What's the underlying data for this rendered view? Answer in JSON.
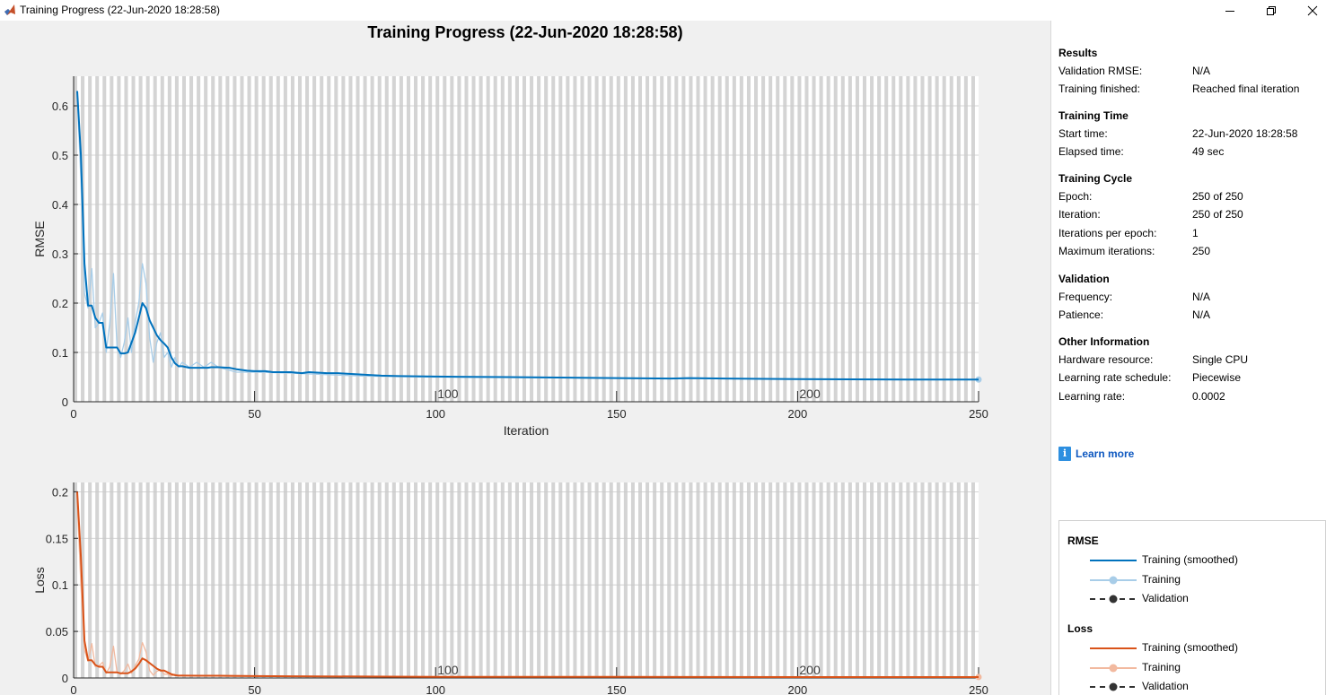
{
  "window": {
    "title": "Training Progress (22-Jun-2020 18:28:58)",
    "controls": [
      "minimize-icon",
      "restore-icon",
      "close-icon"
    ]
  },
  "plot_title": "Training Progress (22-Jun-2020 18:28:58)",
  "colors": {
    "rmse_smoothed": "#0072bd",
    "rmse_raw": "#a8cde8",
    "loss_smoothed": "#d95319",
    "loss_raw": "#f2b99f",
    "validation": "#333333",
    "stripe": "#d4d4d4"
  },
  "results": {
    "sections": [
      {
        "title": "Results",
        "rows": [
          {
            "key": "Validation RMSE:",
            "value": "N/A"
          },
          {
            "key": "Training finished:",
            "value": "Reached final iteration"
          }
        ]
      },
      {
        "title": "Training Time",
        "rows": [
          {
            "key": "Start time:",
            "value": "22-Jun-2020 18:28:58"
          },
          {
            "key": "Elapsed time:",
            "value": "49 sec"
          }
        ]
      },
      {
        "title": "Training Cycle",
        "rows": [
          {
            "key": "Epoch:",
            "value": "250 of 250"
          },
          {
            "key": "Iteration:",
            "value": "250 of 250"
          },
          {
            "key": "Iterations per epoch:",
            "value": "1"
          },
          {
            "key": "Maximum iterations:",
            "value": "250"
          }
        ]
      },
      {
        "title": "Validation",
        "rows": [
          {
            "key": "Frequency:",
            "value": "N/A"
          },
          {
            "key": "Patience:",
            "value": "N/A"
          }
        ]
      },
      {
        "title": "Other Information",
        "rows": [
          {
            "key": "Hardware resource:",
            "value": "Single CPU"
          },
          {
            "key": "Learning rate schedule:",
            "value": "Piecewise"
          },
          {
            "key": "Learning rate:",
            "value": "0.0002"
          }
        ]
      }
    ],
    "learn_more": "Learn more"
  },
  "legend": {
    "groups": [
      {
        "title": "RMSE",
        "items": [
          {
            "label": "Training (smoothed)",
            "style": "solid",
            "color": "#0072bd",
            "marker": false
          },
          {
            "label": "Training",
            "style": "solid",
            "color": "#a8cde8",
            "marker": true
          },
          {
            "label": "Validation",
            "style": "dashed",
            "color": "#333333",
            "marker": true
          }
        ]
      },
      {
        "title": "Loss",
        "items": [
          {
            "label": "Training (smoothed)",
            "style": "solid",
            "color": "#d95319",
            "marker": false
          },
          {
            "label": "Training",
            "style": "solid",
            "color": "#f2b99f",
            "marker": true
          },
          {
            "label": "Validation",
            "style": "dashed",
            "color": "#333333",
            "marker": true
          }
        ]
      }
    ]
  },
  "chart_data": [
    {
      "type": "line",
      "ylabel": "RMSE",
      "xlabel": "Iteration",
      "xlim": [
        0,
        250
      ],
      "ylim": [
        0,
        0.66
      ],
      "xticks": [
        "0",
        "50",
        "100",
        "150",
        "200",
        "250"
      ],
      "yticks": [
        "0",
        "0.1",
        "0.2",
        "0.3",
        "0.4",
        "0.5",
        "0.6"
      ],
      "epoch_labels": [
        "100",
        "200"
      ],
      "grid": true,
      "series": [
        {
          "name": "Training (smoothed)",
          "x": [
            1,
            2,
            3,
            4,
            5,
            6,
            7,
            8,
            9,
            10,
            11,
            12,
            13,
            14,
            15,
            16,
            17,
            18,
            19,
            20,
            21,
            22,
            23,
            24,
            25,
            26,
            27,
            28,
            29,
            30,
            32,
            35,
            37,
            38,
            40,
            43,
            45,
            48,
            50,
            53,
            55,
            58,
            60,
            63,
            65,
            70,
            73,
            75,
            80,
            85,
            90,
            100,
            120,
            150,
            165,
            170,
            180,
            200,
            230,
            250
          ],
          "values": [
            0.63,
            0.5,
            0.28,
            0.195,
            0.195,
            0.17,
            0.16,
            0.16,
            0.11,
            0.11,
            0.11,
            0.11,
            0.098,
            0.098,
            0.1,
            0.12,
            0.14,
            0.17,
            0.2,
            0.19,
            0.165,
            0.15,
            0.135,
            0.125,
            0.118,
            0.11,
            0.09,
            0.078,
            0.072,
            0.072,
            0.069,
            0.069,
            0.069,
            0.07,
            0.07,
            0.069,
            0.066,
            0.063,
            0.062,
            0.062,
            0.06,
            0.06,
            0.06,
            0.058,
            0.06,
            0.058,
            0.058,
            0.057,
            0.055,
            0.053,
            0.052,
            0.051,
            0.05,
            0.048,
            0.047,
            0.048,
            0.047,
            0.046,
            0.045,
            0.045
          ]
        },
        {
          "name": "Training",
          "x": [
            1,
            2,
            3,
            4,
            5,
            6,
            7,
            8,
            9,
            10,
            11,
            12,
            13,
            14,
            15,
            16,
            17,
            18,
            19,
            20,
            21,
            22,
            23,
            24,
            25,
            26,
            27,
            28,
            29,
            30,
            32,
            34,
            36,
            38,
            40,
            45,
            50,
            60,
            80,
            100,
            150,
            200,
            250
          ],
          "values": [
            0.62,
            0.45,
            0.22,
            0.19,
            0.27,
            0.15,
            0.16,
            0.18,
            0.1,
            0.16,
            0.26,
            0.11,
            0.09,
            0.12,
            0.17,
            0.1,
            0.16,
            0.2,
            0.28,
            0.24,
            0.13,
            0.08,
            0.12,
            0.14,
            0.09,
            0.1,
            0.07,
            0.09,
            0.07,
            0.08,
            0.07,
            0.08,
            0.07,
            0.08,
            0.07,
            0.06,
            0.06,
            0.058,
            0.052,
            0.05,
            0.048,
            0.046,
            0.045
          ]
        }
      ]
    },
    {
      "type": "line",
      "ylabel": "Loss",
      "xlabel": "",
      "xlim": [
        0,
        250
      ],
      "ylim": [
        0,
        0.21
      ],
      "xticks": [
        "0",
        "50",
        "100",
        "150",
        "200",
        "250"
      ],
      "yticks": [
        "0",
        "0.05",
        "0.1",
        "0.15",
        "0.2"
      ],
      "epoch_labels": [
        "100",
        "200"
      ],
      "grid": true,
      "series": [
        {
          "name": "Training (smoothed)",
          "x": [
            1,
            2,
            3,
            4,
            5,
            6,
            7,
            8,
            9,
            10,
            11,
            12,
            13,
            14,
            15,
            16,
            17,
            18,
            19,
            20,
            21,
            22,
            23,
            24,
            25,
            26,
            27,
            28,
            29,
            30,
            35,
            40,
            50,
            60,
            80,
            100,
            150,
            200,
            250
          ],
          "values": [
            0.2,
            0.13,
            0.04,
            0.019,
            0.019,
            0.014,
            0.012,
            0.012,
            0.006,
            0.006,
            0.006,
            0.006,
            0.005,
            0.005,
            0.005,
            0.007,
            0.01,
            0.015,
            0.021,
            0.019,
            0.016,
            0.013,
            0.01,
            0.008,
            0.008,
            0.006,
            0.004,
            0.003,
            0.0025,
            0.0025,
            0.0024,
            0.0024,
            0.002,
            0.0018,
            0.0015,
            0.0013,
            0.0012,
            0.001,
            0.001
          ]
        },
        {
          "name": "Training",
          "x": [
            1,
            2,
            3,
            4,
            5,
            6,
            7,
            8,
            9,
            10,
            11,
            12,
            13,
            14,
            15,
            16,
            17,
            18,
            19,
            20,
            21,
            22,
            23,
            24,
            25,
            26,
            27,
            28,
            29,
            30,
            35,
            40,
            50,
            100,
            150,
            200,
            250
          ],
          "values": [
            0.19,
            0.1,
            0.03,
            0.018,
            0.037,
            0.012,
            0.013,
            0.017,
            0.005,
            0.012,
            0.034,
            0.006,
            0.004,
            0.008,
            0.015,
            0.005,
            0.013,
            0.02,
            0.038,
            0.028,
            0.008,
            0.003,
            0.007,
            0.009,
            0.004,
            0.004,
            0.002,
            0.004,
            0.002,
            0.003,
            0.002,
            0.002,
            0.0018,
            0.0013,
            0.0012,
            0.001,
            0.001
          ]
        }
      ]
    }
  ]
}
